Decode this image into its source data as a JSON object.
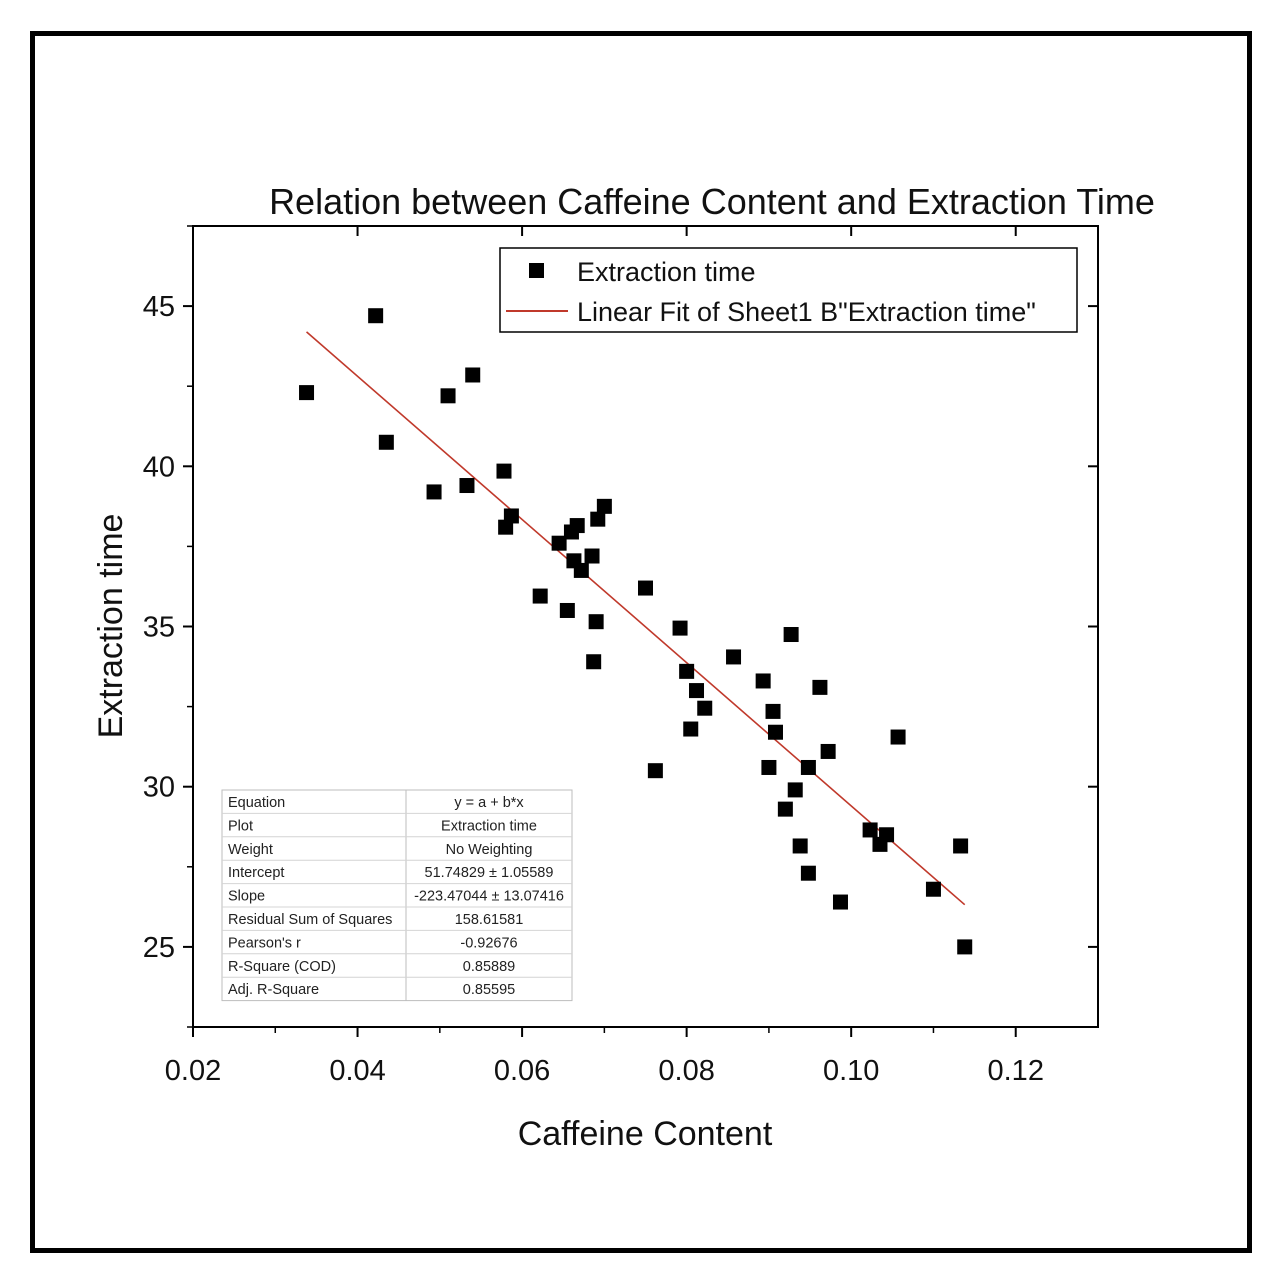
{
  "chart_data": {
    "type": "scatter",
    "title": "Relation between Caffeine Content and Extraction Time",
    "xlabel": "Caffeine Content",
    "ylabel": "Extraction time",
    "xlim": [
      0.02,
      0.13
    ],
    "ylim": [
      22.5,
      47.5
    ],
    "xticks": [
      0.02,
      0.04,
      0.06,
      0.08,
      0.1,
      0.12
    ],
    "xtick_labels": [
      "0.02",
      "0.04",
      "0.06",
      "0.08",
      "0.10",
      "0.12"
    ],
    "yticks": [
      25,
      30,
      35,
      40,
      45
    ],
    "ytick_labels": [
      "25",
      "30",
      "35",
      "40",
      "45"
    ],
    "grid": false,
    "legend_position": "top-right",
    "series": [
      {
        "name": "Extraction time",
        "marker": "square",
        "color": "#000000",
        "points": [
          [
            0.0338,
            42.3
          ],
          [
            0.0422,
            44.7
          ],
          [
            0.0435,
            40.75
          ],
          [
            0.0493,
            39.2
          ],
          [
            0.051,
            42.2
          ],
          [
            0.0533,
            39.4
          ],
          [
            0.054,
            42.85
          ],
          [
            0.0578,
            39.85
          ],
          [
            0.058,
            38.1
          ],
          [
            0.0587,
            38.45
          ],
          [
            0.0622,
            35.95
          ],
          [
            0.0645,
            37.6
          ],
          [
            0.0655,
            35.5
          ],
          [
            0.066,
            37.95
          ],
          [
            0.0663,
            37.05
          ],
          [
            0.0667,
            38.15
          ],
          [
            0.0672,
            36.75
          ],
          [
            0.0685,
            37.2
          ],
          [
            0.0687,
            33.9
          ],
          [
            0.069,
            35.15
          ],
          [
            0.0692,
            38.35
          ],
          [
            0.07,
            38.75
          ],
          [
            0.075,
            36.2
          ],
          [
            0.0762,
            30.5
          ],
          [
            0.0792,
            34.95
          ],
          [
            0.08,
            33.6
          ],
          [
            0.0805,
            31.8
          ],
          [
            0.0812,
            33.0
          ],
          [
            0.0822,
            32.45
          ],
          [
            0.0857,
            34.05
          ],
          [
            0.0893,
            33.3
          ],
          [
            0.09,
            30.6
          ],
          [
            0.0905,
            32.35
          ],
          [
            0.0908,
            31.7
          ],
          [
            0.092,
            29.3
          ],
          [
            0.0927,
            34.75
          ],
          [
            0.0932,
            29.9
          ],
          [
            0.0938,
            28.15
          ],
          [
            0.0948,
            30.6
          ],
          [
            0.0948,
            27.3
          ],
          [
            0.0962,
            33.1
          ],
          [
            0.0972,
            31.1
          ],
          [
            0.0987,
            26.4
          ],
          [
            0.1023,
            28.65
          ],
          [
            0.1035,
            28.2
          ],
          [
            0.1043,
            28.5
          ],
          [
            0.1057,
            31.55
          ],
          [
            0.11,
            26.8
          ],
          [
            0.1133,
            28.15
          ],
          [
            0.1138,
            25.0
          ]
        ]
      },
      {
        "name": "Linear Fit of Sheet1 B\"Extraction time\"",
        "type": "line",
        "color": "#c0392b",
        "x_range": [
          0.0338,
          0.1138
        ],
        "intercept": 51.74829,
        "slope": -223.47044
      }
    ],
    "stats_table": [
      [
        "Equation",
        "y = a + b*x"
      ],
      [
        "Plot",
        "Extraction time"
      ],
      [
        "Weight",
        "No Weighting"
      ],
      [
        "Intercept",
        "51.74829 ± 1.05589"
      ],
      [
        "Slope",
        "-223.47044 ± 13.07416"
      ],
      [
        "Residual Sum of Squares",
        "158.61581"
      ],
      [
        "Pearson's r",
        "-0.92676"
      ],
      [
        "R-Square (COD)",
        "0.85889"
      ],
      [
        "Adj. R-Square",
        "0.85595"
      ]
    ]
  }
}
